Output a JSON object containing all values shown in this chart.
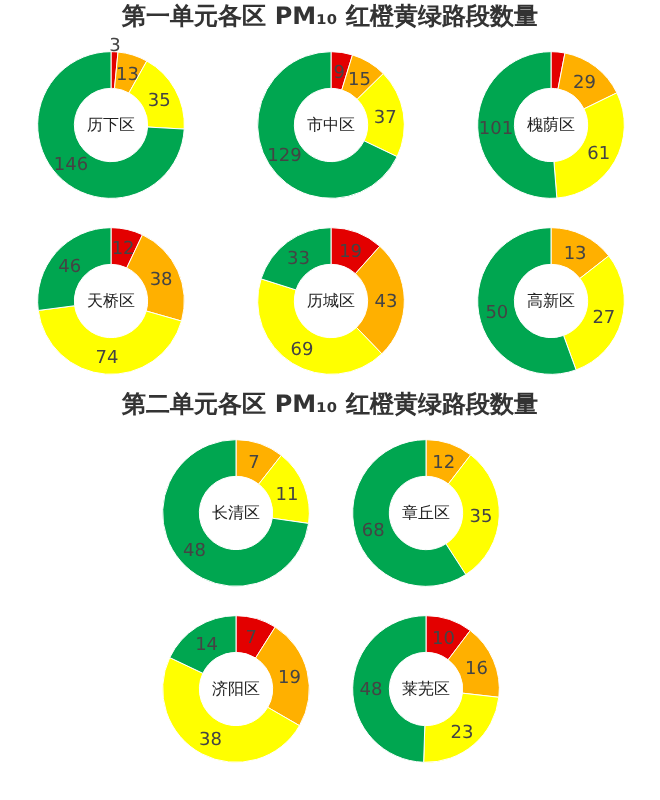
{
  "chart_data": [
    {
      "type": "other",
      "title": "第一单元各区 PM₁₀ 红橙黄绿路段数量"
    },
    {
      "type": "donut",
      "title": "历下区",
      "categories": [
        null,
        null,
        null,
        null
      ],
      "values": [
        3,
        13,
        35,
        146
      ],
      "colors": [
        "#e30000",
        "#ffb000",
        "#ffff00",
        "#00a650"
      ],
      "data_labels": true
    },
    {
      "type": "donut",
      "title": "市中区",
      "categories": [
        null,
        null,
        null,
        null
      ],
      "values": [
        9,
        15,
        37,
        129
      ],
      "colors": [
        "#e30000",
        "#ffb000",
        "#ffff00",
        "#00a650"
      ],
      "data_labels": true
    },
    {
      "type": "donut",
      "title": "槐荫区",
      "categories": [
        null,
        null,
        null,
        null
      ],
      "values": [
        6,
        29,
        61,
        101
      ],
      "colors": [
        "#e30000",
        "#ffb000",
        "#ffff00",
        "#00a650"
      ],
      "value_labels": [
        null,
        "29",
        "61",
        "101"
      ]
    },
    {
      "type": "donut",
      "title": "天桥区",
      "categories": [
        null,
        null,
        null,
        null
      ],
      "values": [
        12,
        38,
        74,
        46
      ],
      "colors": [
        "#e30000",
        "#ffb000",
        "#ffff00",
        "#00a650"
      ],
      "data_labels": true
    },
    {
      "type": "donut",
      "title": "历城区",
      "categories": [
        null,
        null,
        null,
        null
      ],
      "values": [
        19,
        43,
        69,
        33
      ],
      "colors": [
        "#e30000",
        "#ffb000",
        "#ffff00",
        "#00a650"
      ],
      "data_labels": true
    },
    {
      "type": "donut",
      "title": "高新区",
      "categories": [
        null,
        null,
        null
      ],
      "values": [
        13,
        27,
        50
      ],
      "colors": [
        "#ffb000",
        "#ffff00",
        "#00a650"
      ],
      "data_labels": true
    },
    {
      "type": "other",
      "title": "第二单元各区 PM₁₀ 红橙黄绿路段数量"
    },
    {
      "type": "donut",
      "title": "长清区",
      "categories": [
        null,
        null,
        null
      ],
      "values": [
        7,
        11,
        48
      ],
      "colors": [
        "#ffb000",
        "#ffff00",
        "#00a650"
      ],
      "data_labels": true
    },
    {
      "type": "donut",
      "title": "章丘区",
      "categories": [
        null,
        null,
        null
      ],
      "values": [
        12,
        35,
        68
      ],
      "colors": [
        "#ffb000",
        "#ffff00",
        "#00a650"
      ],
      "data_labels": true
    },
    {
      "type": "donut",
      "title": "济阳区",
      "categories": [
        null,
        null,
        null,
        null
      ],
      "values": [
        7,
        19,
        38,
        14
      ],
      "colors": [
        "#e30000",
        "#ffb000",
        "#ffff00",
        "#00a650"
      ],
      "data_labels": true
    },
    {
      "type": "donut",
      "title": "莱芜区",
      "categories": [
        null,
        null,
        null,
        null
      ],
      "values": [
        10,
        16,
        23,
        48
      ],
      "colors": [
        "#e30000",
        "#ffb000",
        "#ffff00",
        "#00a650"
      ],
      "data_labels": true
    }
  ]
}
